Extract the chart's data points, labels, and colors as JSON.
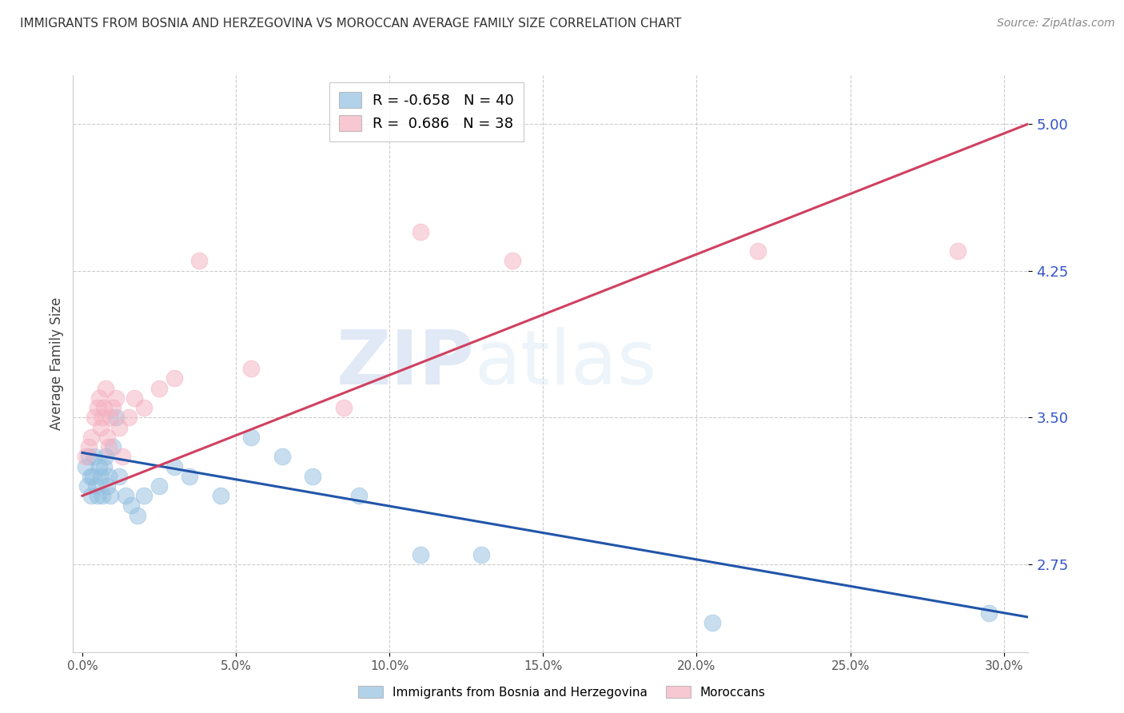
{
  "title": "IMMIGRANTS FROM BOSNIA AND HERZEGOVINA VS MOROCCAN AVERAGE FAMILY SIZE CORRELATION CHART",
  "source": "Source: ZipAtlas.com",
  "ylabel": "Average Family Size",
  "xlabel_ticks": [
    "0.0%",
    "5.0%",
    "10.0%",
    "15.0%",
    "20.0%",
    "25.0%",
    "30.0%"
  ],
  "xlabel_vals": [
    0.0,
    5.0,
    10.0,
    15.0,
    20.0,
    25.0,
    30.0
  ],
  "ylim": [
    2.3,
    5.25
  ],
  "xlim": [
    -0.3,
    30.8
  ],
  "yticks": [
    2.75,
    3.5,
    4.25,
    5.0
  ],
  "blue_r": "-0.658",
  "blue_n": "40",
  "pink_r": "0.686",
  "pink_n": "38",
  "blue_color": "#92bfe0",
  "pink_color": "#f5b0c0",
  "blue_line_color": "#2255aa",
  "pink_line_color": "#d04060",
  "legend_label_blue": "Immigrants from Bosnia and Herzegovina",
  "legend_label_pink": "Moroccans",
  "watermark_zip": "ZIP",
  "watermark_atlas": "atlas",
  "blue_scatter_x": [
    0.1,
    0.15,
    0.2,
    0.25,
    0.3,
    0.35,
    0.4,
    0.45,
    0.5,
    0.55,
    0.6,
    0.65,
    0.7,
    0.75,
    0.8,
    0.85,
    0.9,
    1.0,
    1.1,
    1.2,
    1.4,
    1.6,
    1.8,
    2.0,
    2.5,
    3.0,
    3.5,
    4.5,
    5.5,
    6.5,
    7.5,
    9.0,
    11.0,
    13.0,
    20.5,
    29.5
  ],
  "blue_scatter_y": [
    3.25,
    3.15,
    3.3,
    3.2,
    3.1,
    3.2,
    3.3,
    3.15,
    3.1,
    3.25,
    3.2,
    3.1,
    3.25,
    3.3,
    3.15,
    3.2,
    3.1,
    3.35,
    3.5,
    3.2,
    3.1,
    3.05,
    3.0,
    3.1,
    3.15,
    3.25,
    3.2,
    3.1,
    3.4,
    3.3,
    3.2,
    3.1,
    2.8,
    2.8,
    2.45,
    2.5
  ],
  "pink_scatter_x": [
    0.1,
    0.2,
    0.3,
    0.4,
    0.5,
    0.55,
    0.6,
    0.65,
    0.7,
    0.75,
    0.8,
    0.85,
    0.9,
    1.0,
    1.1,
    1.2,
    1.3,
    1.5,
    1.7,
    2.0,
    2.5,
    3.0,
    3.8,
    5.5,
    8.5,
    11.0,
    14.0,
    22.0,
    28.5
  ],
  "pink_scatter_y": [
    3.3,
    3.35,
    3.4,
    3.5,
    3.55,
    3.6,
    3.45,
    3.5,
    3.55,
    3.65,
    3.4,
    3.35,
    3.5,
    3.55,
    3.6,
    3.45,
    3.3,
    3.5,
    3.6,
    3.55,
    3.65,
    3.7,
    4.3,
    3.75,
    3.55,
    4.45,
    4.3,
    4.35,
    4.35
  ],
  "blue_line_x0": 0.0,
  "blue_line_x1": 30.8,
  "blue_line_y0": 3.32,
  "blue_line_y1": 2.48,
  "pink_line_x0": 0.0,
  "pink_line_x1": 30.8,
  "pink_line_y0": 3.1,
  "pink_line_y1": 5.0
}
